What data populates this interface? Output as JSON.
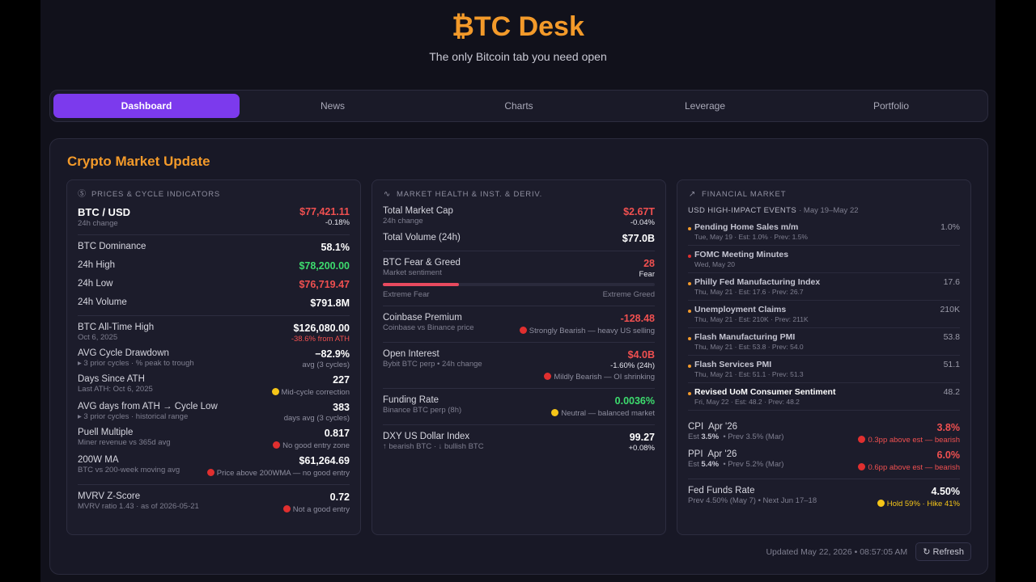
{
  "brand": {
    "title": "₿TC Desk",
    "tagline": "The only Bitcoin tab you need open"
  },
  "tabs": [
    "Dashboard",
    "News",
    "Charts",
    "Leverage",
    "Portfolio"
  ],
  "panel_title": "Crypto Market Update",
  "col1": {
    "header": "PRICES & CYCLE INDICATORS",
    "btc": {
      "label": "BTC / USD",
      "sub": "24h change",
      "value": "$77,421.11",
      "change": "-0.18%"
    },
    "dominance": {
      "label": "BTC Dominance",
      "value": "58.1%"
    },
    "high": {
      "label": "24h High",
      "value": "$78,200.00"
    },
    "low": {
      "label": "24h Low",
      "value": "$76,719.47"
    },
    "volume": {
      "label": "24h Volume",
      "value": "$791.8M"
    },
    "ath": {
      "label": "BTC All-Time High",
      "sub": "Oct 6, 2025",
      "value": "$126,080.00",
      "vsub": "-38.6% from ATH"
    },
    "drawdown": {
      "label": "AVG Cycle Drawdown",
      "sub": "▸ 3 prior cycles · % peak to trough",
      "value": "−82.9%",
      "vsub": "avg (3 cycles)"
    },
    "days_ath": {
      "label": "Days Since ATH",
      "sub": "Last ATH: Oct 6, 2025",
      "value": "227",
      "note": "Mid-cycle correction"
    },
    "avg_days": {
      "label": "AVG days from ATH → Cycle Low",
      "sub": "▸ 3 prior cycles · historical range",
      "value": "383",
      "vsub": "days avg (3 cycles)"
    },
    "puell": {
      "label": "Puell Multiple",
      "sub": "Miner revenue vs 365d avg",
      "value": "0.817",
      "note": "No good entry zone"
    },
    "wma": {
      "label": "200W MA",
      "sub": "BTC vs 200-week moving avg",
      "value": "$61,264.69",
      "note": "Price above 200WMA — no good entry"
    },
    "mvrv": {
      "label": "MVRV Z-Score",
      "sub": "MVRV ratio 1.43 · as of 2026-05-21",
      "value": "0.72",
      "note": "Not a good entry"
    }
  },
  "col2": {
    "header": "MARKET HEALTH & INST. & DERIV.",
    "mcap": {
      "label": "Total Market Cap",
      "sub": "24h change",
      "value": "$2.67T",
      "change": "-0.04%"
    },
    "tvol": {
      "label": "Total Volume (24h)",
      "value": "$77.0B"
    },
    "fg": {
      "label": "BTC Fear & Greed",
      "sub": "Market sentiment",
      "value": "28",
      "vsub": "Fear",
      "left": "Extreme Fear",
      "right": "Extreme Greed",
      "level": 0.28
    },
    "coinbase": {
      "label": "Coinbase Premium",
      "sub": "Coinbase vs Binance price",
      "value": "-128.48",
      "note": "Strongly Bearish — heavy US selling"
    },
    "oi": {
      "label": "Open Interest",
      "sub": "Bybit BTC perp • 24h change",
      "value": "$4.0B",
      "vsub": "-1.60% (24h)",
      "note": "Mildly Bearish — OI shrinking"
    },
    "funding": {
      "label": "Funding Rate",
      "sub": "Binance BTC perp (8h)",
      "value": "0.0036%",
      "note": "Neutral — balanced market"
    },
    "dxy": {
      "label": "DXY US Dollar Index",
      "sub": "↑ bearish BTC  ·  ↓ bullish BTC",
      "value": "99.27",
      "vsub": "+0.08%"
    }
  },
  "col3": {
    "header": "FINANCIAL MARKET",
    "events_title": "USD HIGH-IMPACT EVENTS",
    "events_range": "· May 19–May 22",
    "events": [
      {
        "name": "Pending Home Sales m/m",
        "meta": "Tue, May 19 · Est: 1.0% · Prev: 1.5%",
        "value": "1.0%"
      },
      {
        "name": "FOMC Meeting Minutes",
        "meta": "Wed, May 20",
        "value": ""
      },
      {
        "name": "Philly Fed Manufacturing Index",
        "meta": "Thu, May 21 · Est: 17.6 · Prev: 26.7",
        "value": "17.6"
      },
      {
        "name": "Unemployment Claims",
        "meta": "Thu, May 21 · Est: 210K · Prev: 211K",
        "value": "210K"
      },
      {
        "name": "Flash Manufacturing PMI",
        "meta": "Thu, May 21 · Est: 53.8 · Prev: 54.0",
        "value": "53.8"
      },
      {
        "name": "Flash Services PMI",
        "meta": "Thu, May 21 · Est: 51.1 · Prev: 51.3",
        "value": "51.1"
      },
      {
        "name": "Revised UoM Consumer Sentiment",
        "meta": "Fri, May 22 · Est: 48.2 · Prev: 48.2",
        "value": "48.2"
      }
    ],
    "cpi": {
      "label": "CPI",
      "period": "Apr '26",
      "est_label": "Est",
      "est": "3.5%",
      "prev": "•  Prev 3.5% (Mar)",
      "value": "3.8%",
      "note": "0.3pp above est — bearish"
    },
    "ppi": {
      "label": "PPI",
      "period": "Apr '26",
      "est_label": "Est",
      "est": "5.4%",
      "prev": "•  Prev 5.2% (Mar)",
      "value": "6.0%",
      "note": "0.6pp above est — bearish"
    },
    "ffr": {
      "label": "Fed Funds Rate",
      "sub": "Prev 4.50% (May 7)  •  Next Jun 17–18",
      "value": "4.50%",
      "note": "Hold 59% · Hike 41%"
    }
  },
  "footer": {
    "updated": "Updated May 22, 2026 • 08:57:05 AM",
    "refresh": "Refresh"
  }
}
